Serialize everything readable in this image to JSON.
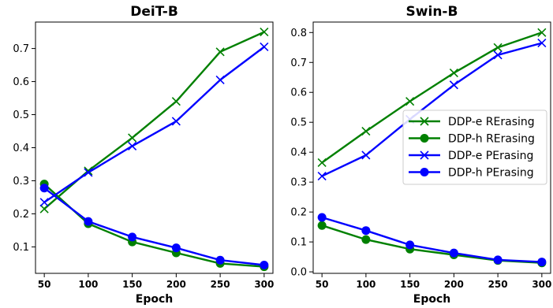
{
  "chart_data": [
    {
      "type": "line",
      "title": "DeiT-B",
      "xlabel": "Epoch",
      "ylabel": "",
      "x": [
        50,
        100,
        150,
        200,
        250,
        300
      ],
      "xticks": [
        "50",
        "100",
        "150",
        "200",
        "250",
        "300"
      ],
      "yticks": [
        "0.1",
        "0.2",
        "0.3",
        "0.4",
        "0.5",
        "0.6",
        "0.7"
      ],
      "xlim": [
        40,
        310
      ],
      "ylim": [
        0.02,
        0.78
      ],
      "series": [
        {
          "name": "DDP-e RErasing",
          "color": "#008000",
          "marker": "x",
          "values": [
            0.215,
            0.33,
            0.43,
            0.54,
            0.69,
            0.75
          ]
        },
        {
          "name": "DDP-h RErasing",
          "color": "#008000",
          "marker": "circle",
          "values": [
            0.29,
            0.17,
            0.115,
            0.082,
            0.05,
            0.04
          ]
        },
        {
          "name": "DDP-e PErasing",
          "color": "#0000ff",
          "marker": "x",
          "values": [
            0.235,
            0.325,
            0.405,
            0.48,
            0.605,
            0.705
          ]
        },
        {
          "name": "DDP-h PErasing",
          "color": "#0000ff",
          "marker": "circle",
          "values": [
            0.278,
            0.177,
            0.13,
            0.097,
            0.06,
            0.045
          ]
        }
      ]
    },
    {
      "type": "line",
      "title": "Swin-B",
      "xlabel": "Epoch",
      "ylabel": "",
      "x": [
        50,
        100,
        150,
        200,
        250,
        300
      ],
      "xticks": [
        "50",
        "100",
        "150",
        "200",
        "250",
        "300"
      ],
      "yticks": [
        "0.0",
        "0.1",
        "0.2",
        "0.3",
        "0.4",
        "0.5",
        "0.6",
        "0.7",
        "0.8"
      ],
      "xlim": [
        40,
        310
      ],
      "ylim": [
        -0.005,
        0.835
      ],
      "legend": "right",
      "series": [
        {
          "name": "DDP-e RErasing",
          "color": "#008000",
          "marker": "x",
          "values": [
            0.365,
            0.47,
            0.57,
            0.665,
            0.75,
            0.8
          ]
        },
        {
          "name": "DDP-h RErasing",
          "color": "#008000",
          "marker": "circle",
          "values": [
            0.155,
            0.108,
            0.076,
            0.057,
            0.038,
            0.03
          ]
        },
        {
          "name": "DDP-e PErasing",
          "color": "#0000ff",
          "marker": "x",
          "values": [
            0.32,
            0.39,
            0.51,
            0.625,
            0.725,
            0.765
          ]
        },
        {
          "name": "DDP-h PErasing",
          "color": "#0000ff",
          "marker": "circle",
          "values": [
            0.182,
            0.138,
            0.09,
            0.063,
            0.04,
            0.033
          ]
        }
      ]
    }
  ]
}
